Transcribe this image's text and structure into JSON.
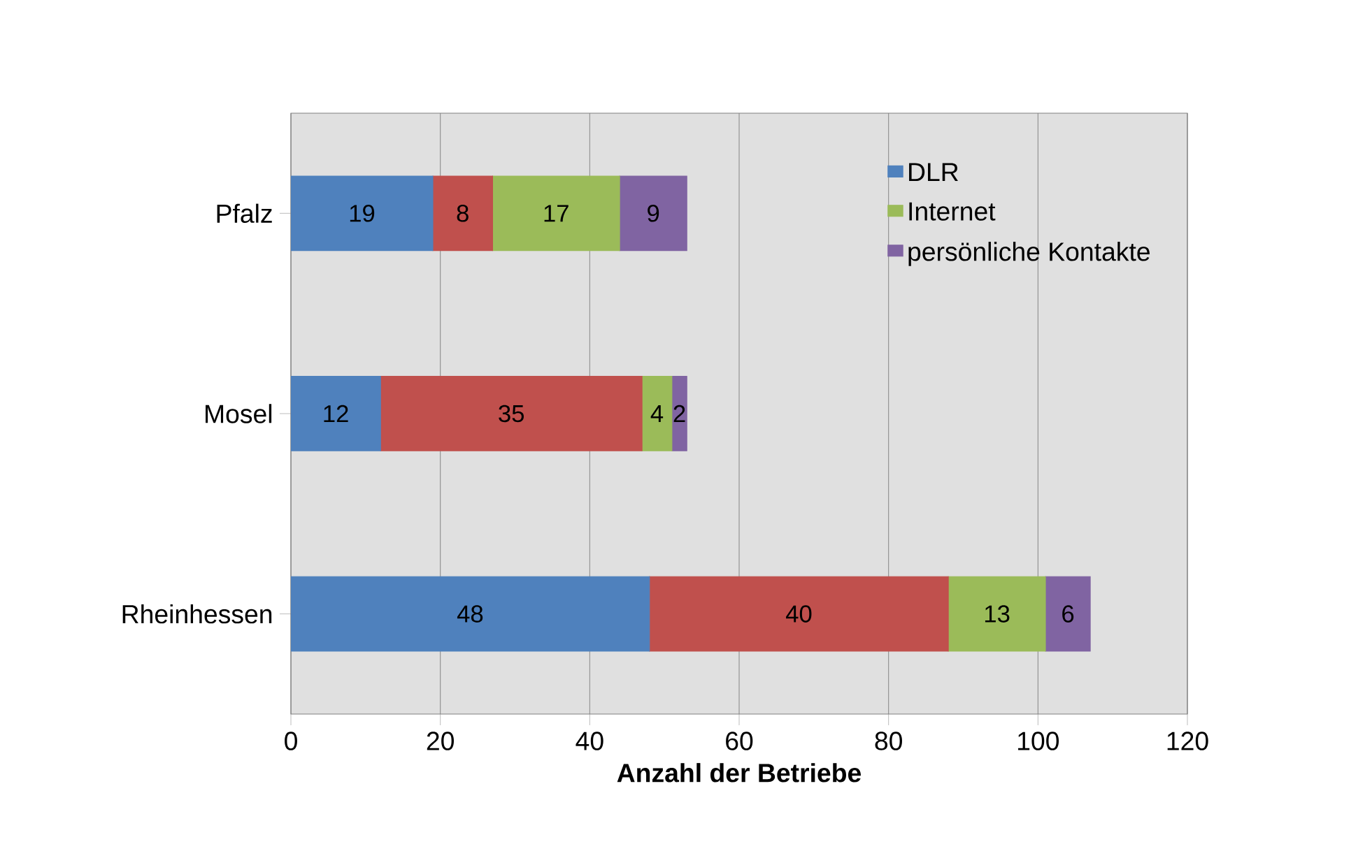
{
  "chart_data": {
    "type": "bar",
    "orientation": "horizontal",
    "stacked": true,
    "categories": [
      "Pfalz",
      "Mosel",
      "Rheinhessen"
    ],
    "series": [
      {
        "name": "DLR",
        "color": "#4f81bd",
        "values": [
          19,
          12,
          48
        ]
      },
      {
        "color": "#c0504d",
        "values": [
          8,
          35,
          40
        ]
      },
      {
        "name": "Internet",
        "color": "#9bbb59",
        "values": [
          17,
          4,
          13
        ]
      },
      {
        "name": "persönliche Kontakte",
        "color": "#8064a2",
        "values": [
          9,
          2,
          6
        ]
      }
    ],
    "xlabel": "Anzahl der Betriebe",
    "xlim": [
      0,
      120
    ],
    "xticks": [
      0,
      20,
      40,
      60,
      80,
      100,
      120
    ],
    "grid": "x",
    "legend": "top right",
    "data_labels": true
  }
}
